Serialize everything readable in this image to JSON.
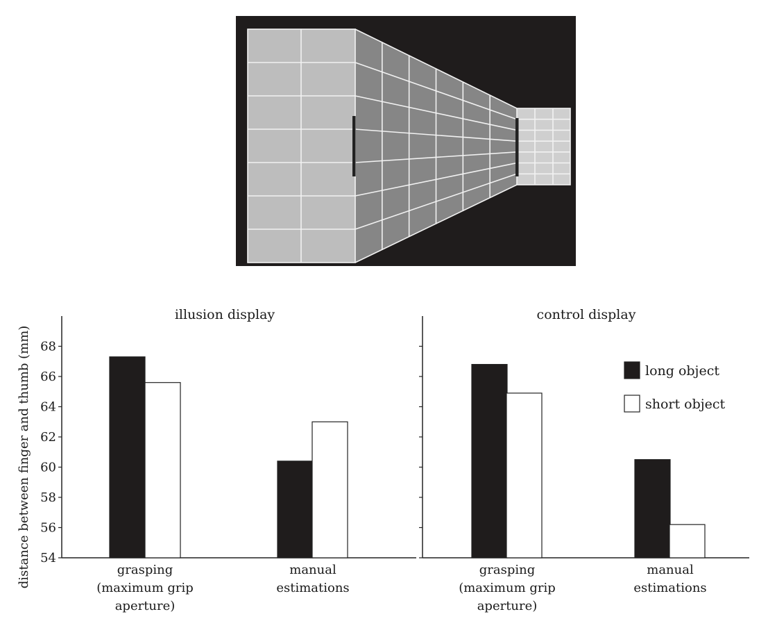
{
  "colors": {
    "background": "#ffffff",
    "panel": "#1f1c1c",
    "near_wall": "#bdbdbd",
    "corridor": "#868686",
    "far_wall": "#cfcfcf",
    "grid_line": "#f2f2f2",
    "object_bar": "#222222",
    "long_fill": "#1f1c1c",
    "short_fill": "#ffffff",
    "axis": "#222222"
  },
  "chart_data": [
    {
      "type": "bar",
      "title": "illusion display",
      "ylabel": "distance between finger and thumb (mm)",
      "ylim": [
        54,
        70
      ],
      "yticks": [
        54,
        56,
        58,
        60,
        62,
        64,
        66,
        68
      ],
      "categories": [
        [
          "grasping",
          "(maximum grip",
          "aperture)"
        ],
        [
          "manual",
          "estimations"
        ]
      ],
      "series": [
        {
          "name": "long object",
          "values": [
            67.3,
            60.4
          ]
        },
        {
          "name": "short object",
          "values": [
            65.6,
            63.0
          ]
        }
      ]
    },
    {
      "type": "bar",
      "title": "control display",
      "ylim": [
        54,
        70
      ],
      "categories": [
        [
          "grasping",
          "(maximum grip",
          "aperture)"
        ],
        [
          "manual",
          "estimations"
        ]
      ],
      "series": [
        {
          "name": "long object",
          "values": [
            66.8,
            60.5
          ]
        },
        {
          "name": "short object",
          "values": [
            64.9,
            56.2
          ]
        }
      ],
      "legend": {
        "placement": "top-right",
        "entries": [
          "long object",
          "short object"
        ]
      }
    }
  ]
}
